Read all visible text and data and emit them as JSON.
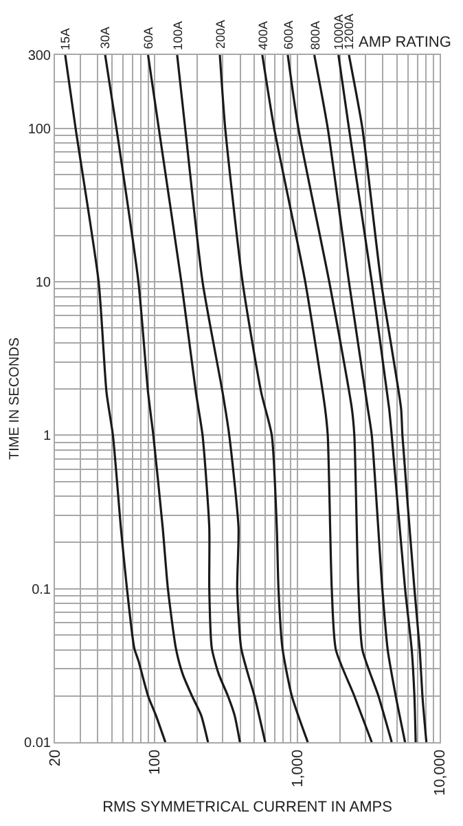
{
  "chart_data": {
    "type": "line",
    "xlabel": "RMS SYMMETRICAL CURRENT IN AMPS",
    "ylabel": "TIME IN SECONDS",
    "log": "xy",
    "grid": true,
    "legend": false,
    "marker": "none",
    "line_style": "solid",
    "annotations": [
      "AMP RATING"
    ],
    "xlim": [
      20,
      10000
    ],
    "xticks": [
      20,
      {
        "value": 30,
        "label": null
      },
      {
        "value": 40,
        "label": null
      },
      {
        "value": 50,
        "label": null
      },
      {
        "value": 60,
        "label": null
      },
      {
        "value": 70,
        "label": null
      },
      {
        "value": 80,
        "label": null
      },
      {
        "value": 90,
        "label": null
      },
      100,
      {
        "value": 200,
        "label": null
      },
      {
        "value": 300,
        "label": null
      },
      {
        "value": 400,
        "label": null
      },
      {
        "value": 500,
        "label": null
      },
      {
        "value": 600,
        "label": null
      },
      {
        "value": 700,
        "label": null
      },
      {
        "value": 800,
        "label": null
      },
      {
        "value": 900,
        "label": null
      },
      {
        "value": 1000,
        "label": "1,000"
      },
      {
        "value": 2000,
        "label": null
      },
      {
        "value": 3000,
        "label": null
      },
      {
        "value": 4000,
        "label": null
      },
      {
        "value": 5000,
        "label": null
      },
      {
        "value": 6000,
        "label": null
      },
      {
        "value": 7000,
        "label": null
      },
      {
        "value": 8000,
        "label": null
      },
      {
        "value": 9000,
        "label": null
      },
      {
        "value": 10000,
        "label": "10,000"
      }
    ],
    "ylim": [
      0.01,
      300
    ],
    "yticks": [
      0.01,
      {
        "value": 0.02,
        "label": null
      },
      {
        "value": 0.03,
        "label": null
      },
      {
        "value": 0.04,
        "label": null
      },
      {
        "value": 0.05,
        "label": null
      },
      {
        "value": 0.06,
        "label": null
      },
      {
        "value": 0.07,
        "label": null
      },
      {
        "value": 0.08,
        "label": null
      },
      {
        "value": 0.09,
        "label": null
      },
      0.1,
      {
        "value": 0.2,
        "label": null
      },
      {
        "value": 0.3,
        "label": null
      },
      {
        "value": 0.4,
        "label": null
      },
      {
        "value": 0.5,
        "label": null
      },
      {
        "value": 0.6,
        "label": null
      },
      {
        "value": 0.7,
        "label": null
      },
      {
        "value": 0.8,
        "label": null
      },
      {
        "value": 0.9,
        "label": null
      },
      1,
      {
        "value": 2,
        "label": null
      },
      {
        "value": 3,
        "label": null
      },
      {
        "value": 4,
        "label": null
      },
      {
        "value": 5,
        "label": null
      },
      {
        "value": 6,
        "label": null
      },
      {
        "value": 7,
        "label": null
      },
      {
        "value": 8,
        "label": null
      },
      {
        "value": 9,
        "label": null
      },
      10,
      {
        "value": 20,
        "label": null
      },
      {
        "value": 30,
        "label": null
      },
      {
        "value": 40,
        "label": null
      },
      {
        "value": 50,
        "label": null
      },
      {
        "value": 60,
        "label": null
      },
      {
        "value": 70,
        "label": null
      },
      {
        "value": 80,
        "label": null
      },
      {
        "value": 90,
        "label": null
      },
      100,
      {
        "value": 200,
        "label": null
      },
      300
    ],
    "series": [
      {
        "name": "15A",
        "color": "#1a1a1a",
        "x": [
          23.6,
          27.9,
          40.5,
          46,
          51,
          58,
          64,
          72,
          77,
          90,
          102,
          119
        ],
        "values": [
          300,
          100,
          10,
          1.9,
          1,
          0.25,
          0.1,
          0.041,
          0.034,
          0.02,
          0.015,
          0.01
        ]
      },
      {
        "name": "30A",
        "color": "#1a1a1a",
        "x": [
          45,
          54,
          77,
          90,
          98,
          114,
          124,
          141,
          157,
          183,
          212,
          237
        ],
        "values": [
          300,
          100,
          10,
          1.9,
          1,
          0.25,
          0.1,
          0.041,
          0.028,
          0.02,
          0.015,
          0.01
        ]
      },
      {
        "name": "60A",
        "color": "#1a1a1a",
        "x": [
          90,
          107,
          154,
          195,
          217,
          242,
          242,
          252,
          281,
          327,
          364,
          397
        ],
        "values": [
          300,
          100,
          10,
          1.9,
          1,
          0.25,
          0.1,
          0.041,
          0.028,
          0.02,
          0.015,
          0.01
        ]
      },
      {
        "name": "100A",
        "color": "#1a1a1a",
        "x": [
          144,
          164,
          217,
          300,
          334,
          388,
          380,
          405,
          451,
          502,
          597
        ],
        "values": [
          300,
          100,
          10,
          1.9,
          1,
          0.25,
          0.1,
          0.041,
          0.028,
          0.02,
          0.01
        ]
      },
      {
        "name": "200A",
        "color": "#1a1a1a",
        "x": [
          287,
          313,
          414,
          560,
          664,
          720,
          740,
          789,
          918,
          1188
        ],
        "values": [
          300,
          100,
          10,
          1.9,
          1,
          0.25,
          0.1,
          0.041,
          0.02,
          0.01
        ]
      },
      {
        "name": "400A",
        "color": "#1a1a1a",
        "x": [
          570,
          690,
          1140,
          1570,
          1640,
          1750,
          1870,
          2520,
          3340
        ],
        "values": [
          300,
          100,
          10,
          1.5,
          1,
          0.1,
          0.04,
          0.02,
          0.01
        ]
      },
      {
        "name": "600A",
        "color": "#1a1a1a",
        "x": [
          860,
          1020,
          1680,
          2420,
          2520,
          2690,
          2870,
          3720,
          4610
        ],
        "values": [
          300,
          100,
          10,
          1.5,
          1,
          0.1,
          0.04,
          0.02,
          0.01
        ]
      },
      {
        "name": "800A",
        "color": "#1a1a1a",
        "x": [
          1320,
          1640,
          2310,
          3130,
          3340,
          3960,
          4320,
          4920,
          5720
        ],
        "values": [
          300,
          100,
          10,
          1.5,
          1,
          0.1,
          0.04,
          0.02,
          0.01
        ]
      },
      {
        "name": "1000A",
        "color": "#1a1a1a",
        "x": [
          1950,
          2310,
          3340,
          4420,
          4610,
          5720,
          6370,
          6650,
          6790
        ],
        "values": [
          300,
          100,
          10,
          1.5,
          1,
          0.1,
          0.04,
          0.02,
          0.01
        ]
      },
      {
        "name": "1200A",
        "color": "#1a1a1a",
        "x": [
          2310,
          2870,
          3880,
          5360,
          5480,
          6650,
          7250,
          7570,
          8070
        ],
        "values": [
          300,
          100,
          10,
          1.5,
          1,
          0.1,
          0.04,
          0.02,
          0.01
        ]
      }
    ]
  }
}
